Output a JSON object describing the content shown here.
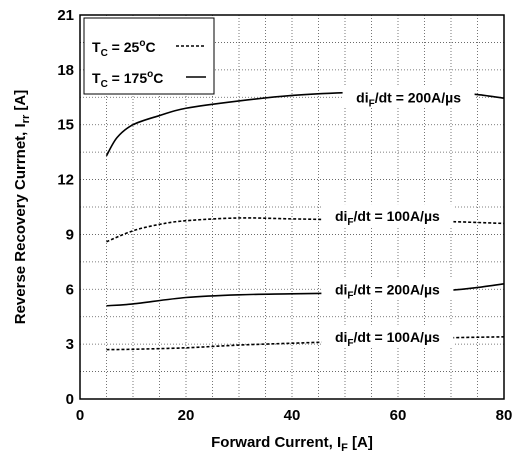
{
  "chart_data": {
    "type": "line",
    "xlabel": {
      "main": "Forward Current, I",
      "sub": "F",
      "unit": " [A]"
    },
    "ylabel": {
      "main": "Reverse Recovery Currnet, I",
      "sub": "rr",
      "unit": " [A]"
    },
    "xlim": [
      0,
      80
    ],
    "ylim": [
      0,
      21
    ],
    "x_ticks": [
      0,
      20,
      40,
      60,
      80
    ],
    "y_ticks": [
      0,
      3,
      6,
      9,
      12,
      15,
      18,
      21
    ],
    "x_minor_step": 5,
    "y_minor_step": 1.5,
    "grid": "dotted",
    "legend": {
      "position": "top-left",
      "entries": [
        {
          "prefix": "T",
          "sub": "C",
          "mid": " = 25",
          "sup": "o",
          "suffix": "C",
          "style": "dashed"
        },
        {
          "prefix": "T",
          "sub": "C",
          "mid": " = 175",
          "sup": "o",
          "suffix": "C",
          "style": "solid"
        }
      ]
    },
    "series": [
      {
        "temperature": "175°C",
        "style": "solid",
        "label": {
          "pre": "di",
          "sub": "F",
          "post": "/dt = 200A/µs"
        },
        "x": [
          5,
          7,
          10,
          15,
          20,
          30,
          40,
          50,
          60,
          70,
          75,
          80
        ],
        "y": [
          13.3,
          14.3,
          15.0,
          15.5,
          15.9,
          16.3,
          16.6,
          16.75,
          16.8,
          16.75,
          16.65,
          16.45
        ]
      },
      {
        "temperature": "25°C",
        "style": "dashed",
        "label": {
          "pre": "di",
          "sub": "F",
          "post": "/dt = 100A/µs"
        },
        "x": [
          5,
          10,
          15,
          20,
          30,
          40,
          50,
          60,
          70,
          80
        ],
        "y": [
          8.6,
          9.2,
          9.55,
          9.75,
          9.9,
          9.85,
          9.8,
          9.75,
          9.7,
          9.6
        ]
      },
      {
        "temperature": "175°C",
        "style": "solid",
        "label": {
          "pre": "di",
          "sub": "F",
          "post": "/dt = 200A/µs"
        },
        "x": [
          5,
          10,
          20,
          30,
          40,
          50,
          60,
          70,
          75,
          80
        ],
        "y": [
          5.1,
          5.2,
          5.55,
          5.7,
          5.75,
          5.8,
          5.85,
          5.95,
          6.1,
          6.3
        ]
      },
      {
        "temperature": "25°C",
        "style": "dashed",
        "label": {
          "pre": "di",
          "sub": "F",
          "post": "/dt = 100A/µs"
        },
        "x": [
          5,
          10,
          20,
          30,
          40,
          50,
          60,
          70,
          80
        ],
        "y": [
          2.7,
          2.72,
          2.8,
          2.95,
          3.05,
          3.15,
          3.25,
          3.35,
          3.4
        ]
      }
    ]
  }
}
